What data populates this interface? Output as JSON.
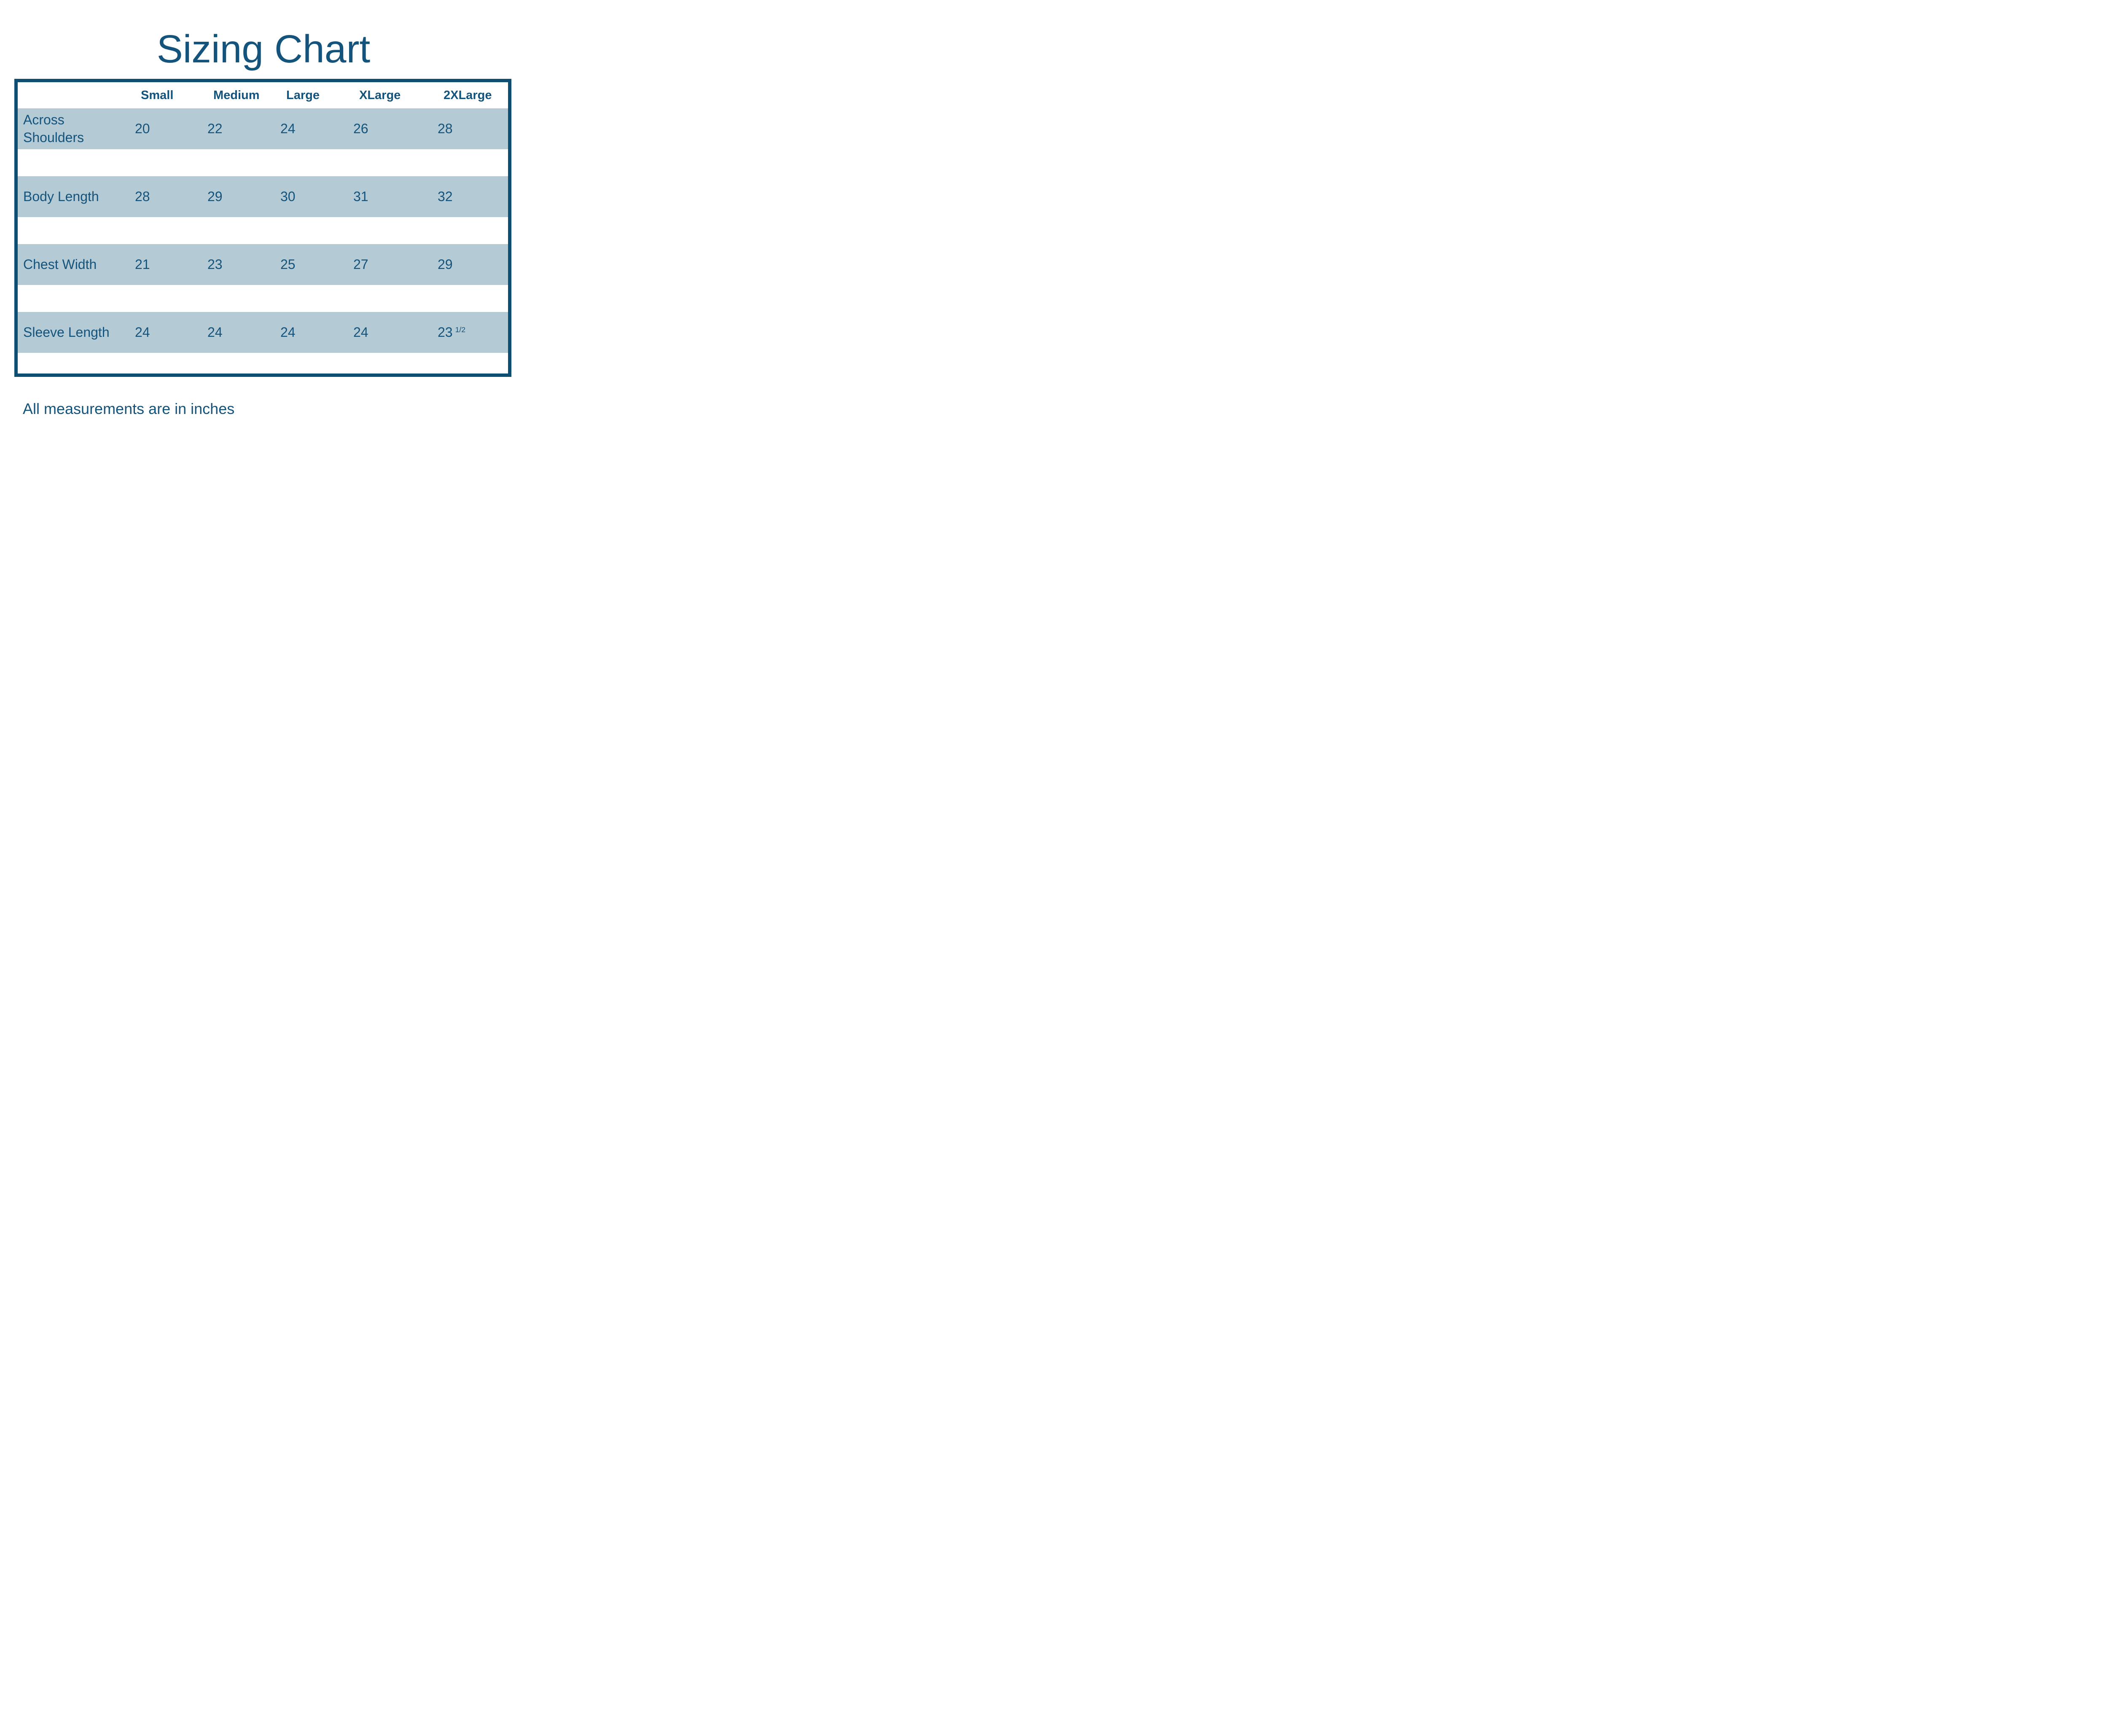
{
  "title": "Sizing Chart",
  "footer_note": "All measurements are in inches",
  "colors": {
    "text": "#14537b",
    "border": "#0d4e72",
    "row-bg": "#b4cbd6",
    "page-bg": "#ffffff"
  },
  "table": {
    "size_headers": [
      "Small",
      "Medium",
      "Large",
      "XLarge",
      "2XLarge"
    ],
    "rows": [
      {
        "label": "Across Shoulders",
        "values": [
          "20",
          "22",
          "24",
          "26",
          "28"
        ]
      },
      {
        "label": "Body Length",
        "values": [
          "28",
          "29",
          "30",
          "31",
          "32"
        ]
      },
      {
        "label": "Chest Width",
        "values": [
          "21",
          "23",
          "25",
          "27",
          "29"
        ]
      },
      {
        "label": "Sleeve Length",
        "values": [
          "24",
          "24",
          "24",
          "24",
          "23"
        ],
        "value_fraction": "1/2"
      }
    ]
  },
  "chart_data": {
    "type": "table",
    "title": "Sizing Chart",
    "columns": [
      "Small",
      "Medium",
      "Large",
      "XLarge",
      "2XLarge"
    ],
    "rows": [
      {
        "label": "Across Shoulders",
        "values": [
          20,
          22,
          24,
          26,
          28
        ]
      },
      {
        "label": "Body Length",
        "values": [
          28,
          29,
          30,
          31,
          32
        ]
      },
      {
        "label": "Chest Width",
        "values": [
          21,
          23,
          25,
          27,
          29
        ]
      },
      {
        "label": "Sleeve Length",
        "values": [
          24,
          24,
          24,
          24,
          23.5
        ]
      }
    ],
    "note": "All measurements are in inches"
  }
}
